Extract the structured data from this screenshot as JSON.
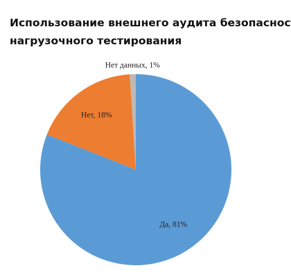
{
  "chart_data": {
    "type": "pie",
    "title": [
      "Использование внешнего аудита безопасности/",
      "нагрузочного тестирования"
    ],
    "values": [
      81,
      18,
      1
    ],
    "value_labels": [
      "Да, 81%",
      "Нет, 18%",
      "Нет данных, 1%"
    ],
    "colors": [
      "#5b9bd5",
      "#ed7d31",
      "#bfb9b3"
    ]
  }
}
